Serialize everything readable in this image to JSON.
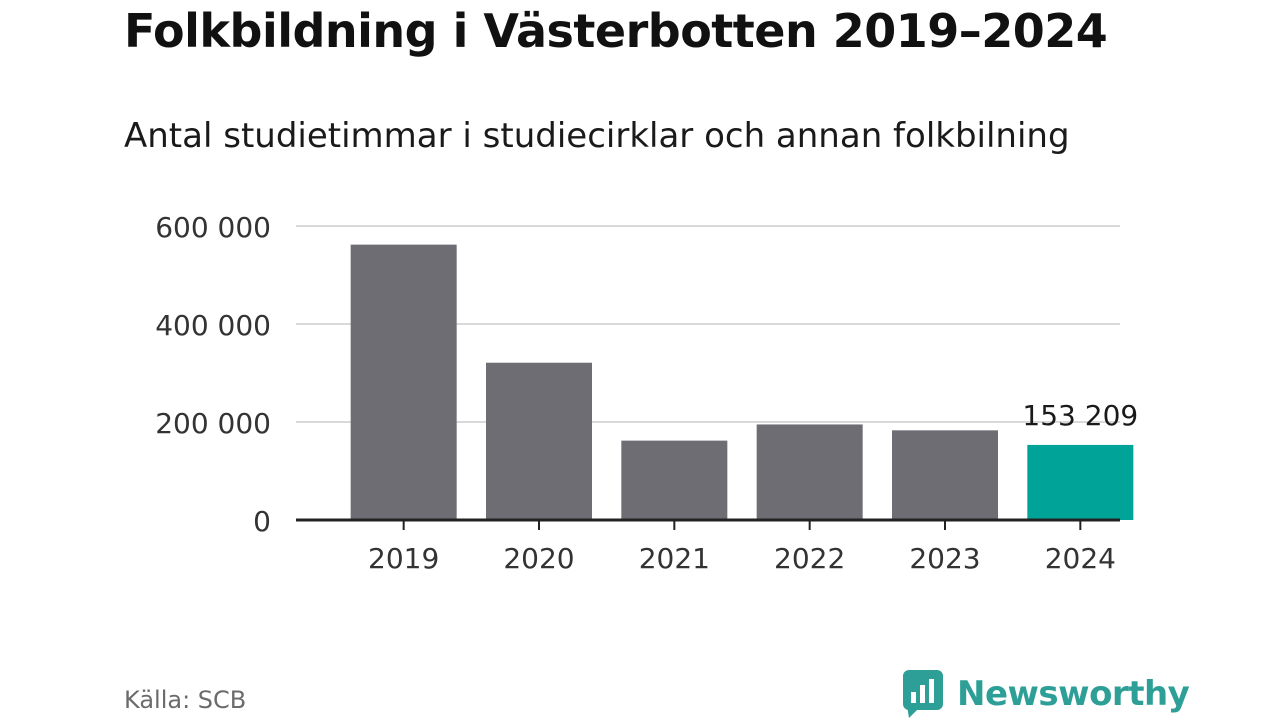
{
  "header": {
    "title": "Folkbildning i Västerbotten 2019–2024",
    "subtitle": "Antal studietimmar i studiecirklar och annan folkbilning"
  },
  "footer": {
    "source": "Källa: SCB",
    "brand": "Newsworthy"
  },
  "colors": {
    "bar": "#6e6d73",
    "highlight": "#00a398",
    "grid": "#d9d9d9",
    "axis": "#222222",
    "brand": "#2d9f96"
  },
  "chart_data": {
    "type": "bar",
    "categories": [
      "2019",
      "2020",
      "2021",
      "2022",
      "2023",
      "2024"
    ],
    "values": [
      562000,
      321000,
      162000,
      195000,
      183000,
      153209
    ],
    "highlight_index": 5,
    "data_labels": [
      {
        "index": 5,
        "text": "153 209"
      }
    ],
    "y_ticks": [
      {
        "value": 0,
        "label": "0"
      },
      {
        "value": 200000,
        "label": "200 000"
      },
      {
        "value": 400000,
        "label": "400 000"
      },
      {
        "value": 600000,
        "label": "600 000"
      }
    ],
    "ylim": [
      0,
      600000
    ],
    "grid": true,
    "xlabel": "",
    "ylabel": ""
  }
}
